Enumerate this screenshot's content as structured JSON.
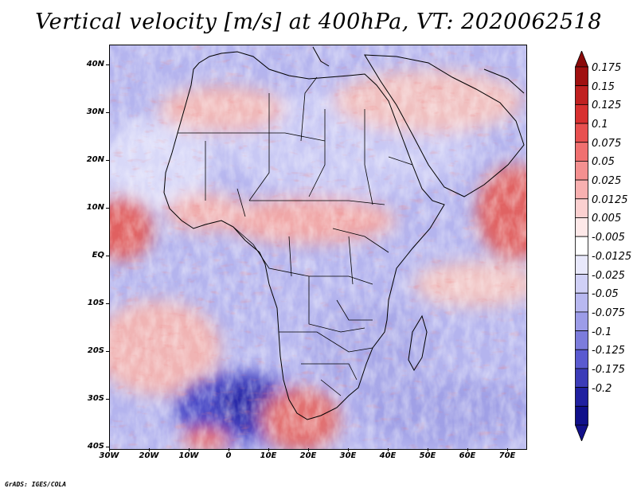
{
  "title": "Vertical velocity [m/s] at 400hPa, VT: 2020062518",
  "credit": "GrADS: IGES/COLA",
  "map": {
    "projection": "latlon",
    "lon_range": [
      -30,
      75
    ],
    "lat_range": [
      -40,
      45
    ],
    "lat_ticks": [
      "40N",
      "30N",
      "20N",
      "10N",
      "EQ",
      "10S",
      "20S",
      "30S",
      "40S"
    ],
    "lon_ticks": [
      "30W",
      "20W",
      "10W",
      "0",
      "10E",
      "20E",
      "30E",
      "40E",
      "50E",
      "60E",
      "70E"
    ],
    "features": [
      "coastlines",
      "country-borders"
    ],
    "dominant_pattern": "mixed rising (red) and sinking (blue) motion; strong sinking south-west of South Africa, rising bands over Sahel, West Africa coast and Arabian Sea"
  },
  "colorbar": {
    "levels": [
      "0.175",
      "0.15",
      "0.125",
      "0.1",
      "0.075",
      "0.05",
      "0.025",
      "0.0125",
      "0.005",
      "-0.005",
      "-0.0125",
      "-0.025",
      "-0.05",
      "-0.075",
      "-0.1",
      "-0.125",
      "-0.175",
      "-0.2"
    ],
    "colors": [
      "#a01010",
      "#c02020",
      "#d83030",
      "#e85050",
      "#f07070",
      "#f49090",
      "#f8b0b0",
      "#fbd0d0",
      "#fde8e8",
      "#ffffff",
      "#e8e8fb",
      "#d0d0f6",
      "#b8b8f0",
      "#9c9ce8",
      "#7c7cdc",
      "#5a5ad0",
      "#3c3cb8",
      "#2020a0",
      "#10108a"
    ],
    "top_arrow_color": "#8a0a0a",
    "bottom_arrow_color": "#12108a"
  }
}
